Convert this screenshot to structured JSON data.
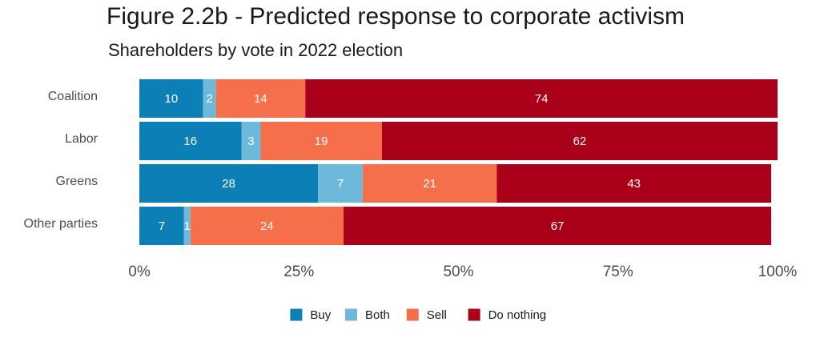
{
  "title": "Figure 2.2b - Predicted response to corporate activism",
  "subtitle": "Shareholders by vote in 2022 election",
  "chart_data": {
    "type": "bar",
    "orientation": "horizontal",
    "stacked": true,
    "categories": [
      "Coalition",
      "Labor",
      "Greens",
      "Other parties"
    ],
    "series": [
      {
        "name": "Buy",
        "color": "#0b7fb6",
        "values": [
          10,
          16,
          28,
          7
        ]
      },
      {
        "name": "Both",
        "color": "#6db9dc",
        "values": [
          2,
          3,
          7,
          1
        ]
      },
      {
        "name": "Sell",
        "color": "#f5704a",
        "values": [
          14,
          19,
          21,
          24
        ]
      },
      {
        "name": "Do nothing",
        "color": "#ab0019",
        "values": [
          74,
          62,
          43,
          67
        ]
      }
    ],
    "xlim": [
      0,
      100
    ],
    "xticks": [
      "0%",
      "25%",
      "50%",
      "75%",
      "100%"
    ],
    "xlabel": "",
    "ylabel": "",
    "grid": false,
    "legend_position": "bottom"
  }
}
